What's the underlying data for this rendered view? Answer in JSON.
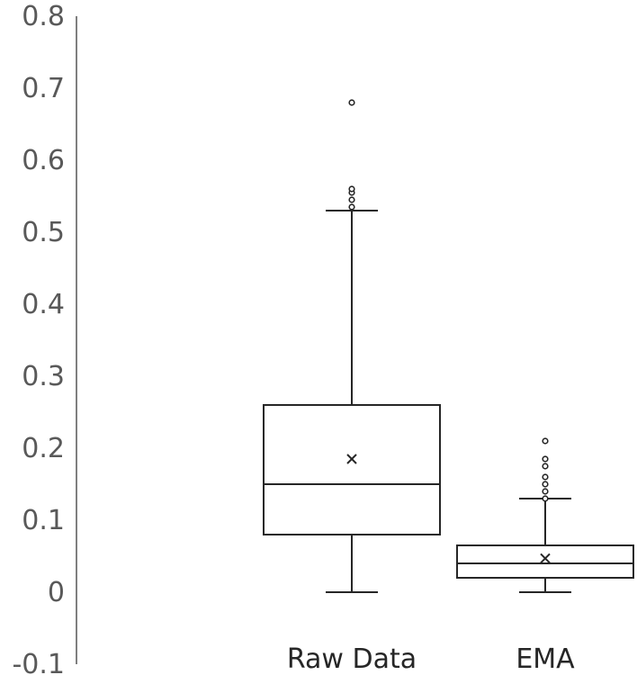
{
  "chart_data": {
    "type": "box",
    "title": "",
    "xlabel": "",
    "ylabel": "",
    "ylim": [
      -0.1,
      0.8
    ],
    "yticks": [
      "-0.1",
      "0",
      "0.1",
      "0.2",
      "0.3",
      "0.4",
      "0.5",
      "0.6",
      "0.7",
      "0.8"
    ],
    "grid": false,
    "categories": [
      "Raw Data",
      "EMA"
    ],
    "boxes": [
      {
        "category": "Raw Data",
        "min": 0.0,
        "q1": 0.08,
        "median": 0.15,
        "q3": 0.26,
        "max": 0.53,
        "mean": 0.185,
        "outliers": [
          0.535,
          0.545,
          0.555,
          0.56,
          0.68
        ]
      },
      {
        "category": "EMA",
        "min": 0.0,
        "q1": 0.02,
        "median": 0.04,
        "q3": 0.065,
        "max": 0.13,
        "mean": 0.047,
        "outliers": [
          0.13,
          0.14,
          0.15,
          0.16,
          0.175,
          0.185,
          0.21
        ]
      }
    ]
  }
}
